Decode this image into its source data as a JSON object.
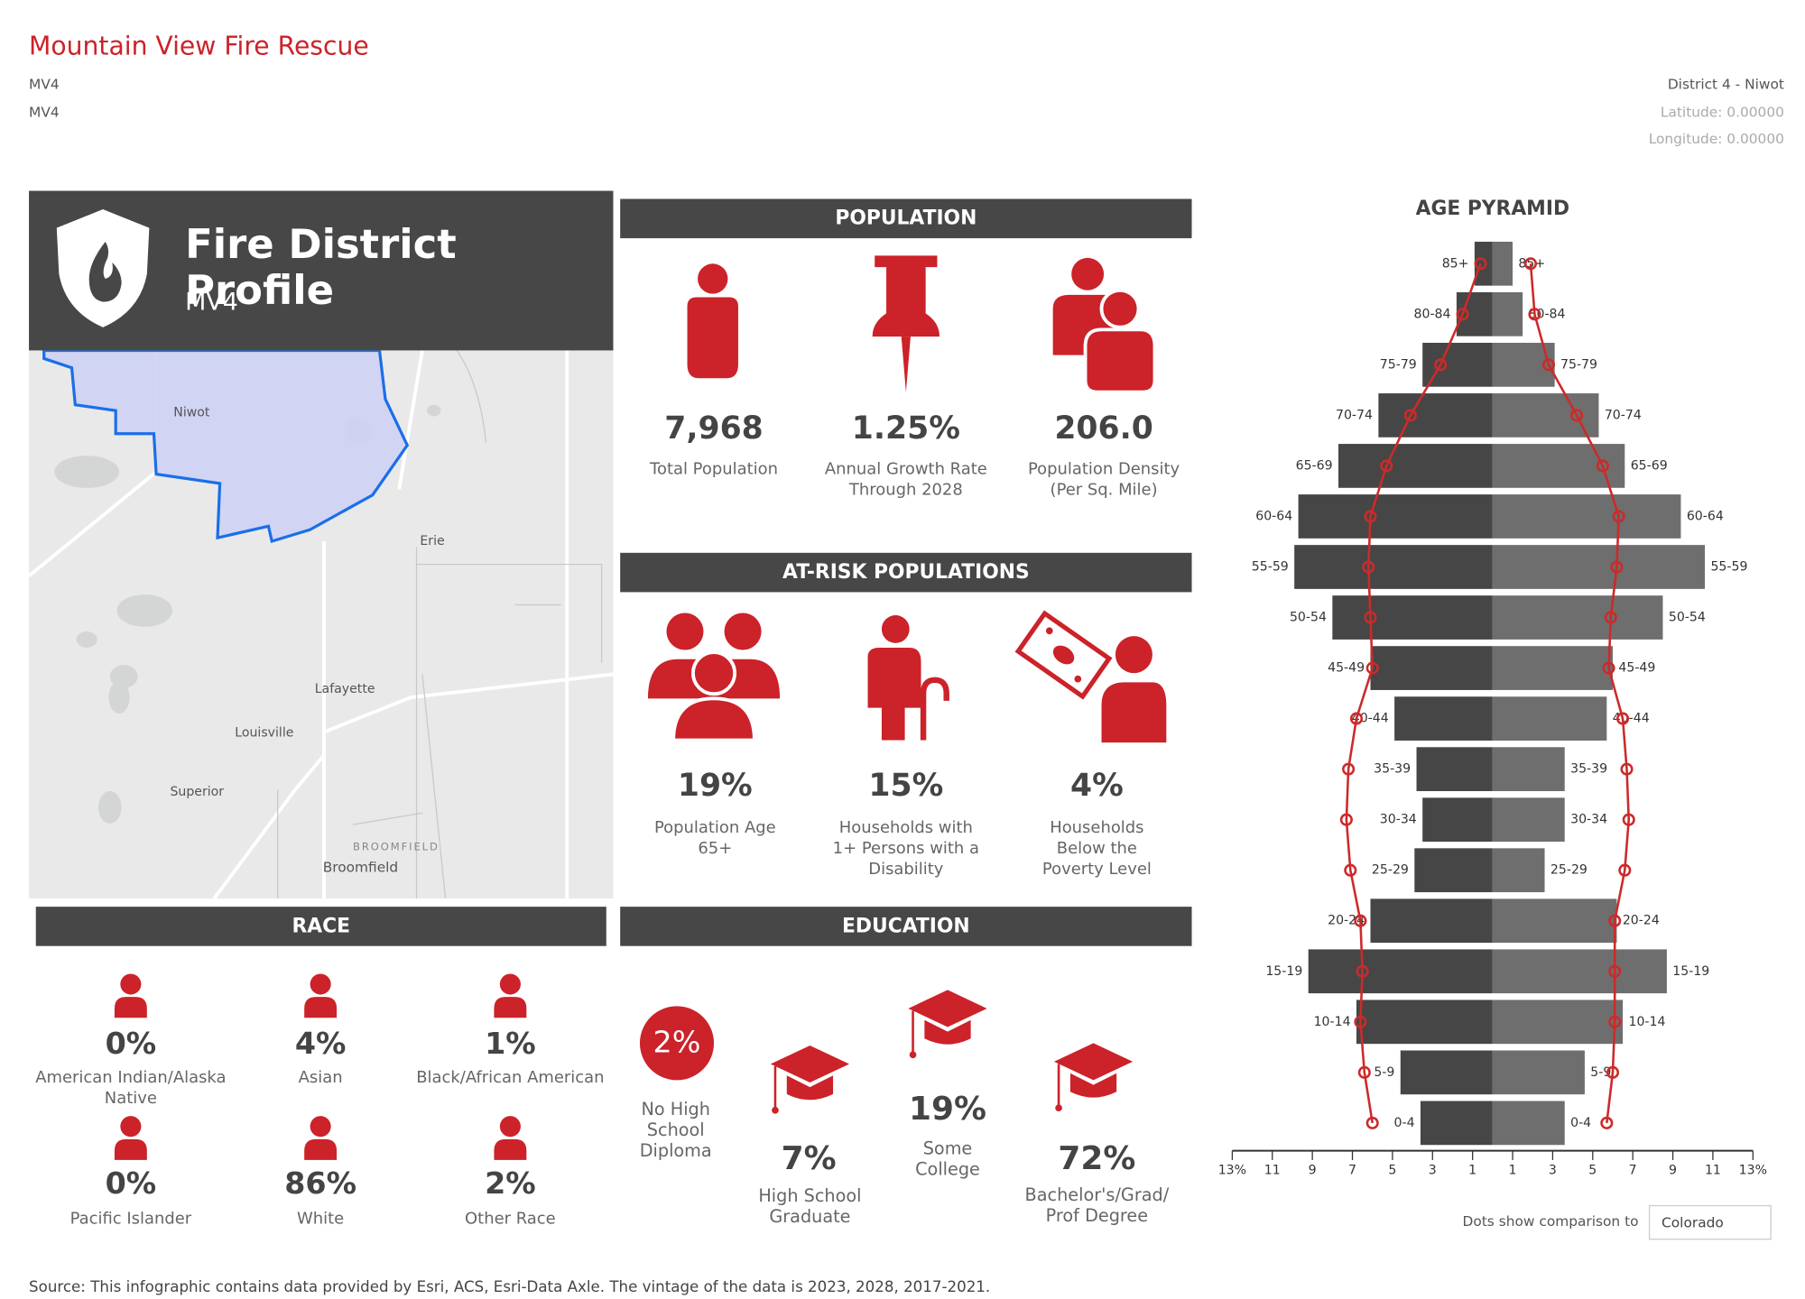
{
  "header": {
    "title": "Mountain View Fire Rescue",
    "code1": "MV4",
    "code2": "MV4",
    "district": "District 4 - Niwot",
    "latitude": "Latitude: 0.00000",
    "longitude": "Longitude: 0.00000"
  },
  "profile": {
    "title": "Fire District Profile",
    "subtitle": "MV4"
  },
  "map": {
    "places": [
      "Niwot",
      "Erie",
      "Lafayette",
      "Louisville",
      "Superior",
      "BROOMFIELD",
      "Broomfield"
    ]
  },
  "population": {
    "heading": "POPULATION",
    "stats": [
      {
        "value": "7,968",
        "label": "Total Population"
      },
      {
        "value": "1.25%",
        "label": "Annual Growth Rate Through 2028"
      },
      {
        "value": "206.0",
        "label": "Population Density (Per Sq. Mile)"
      }
    ]
  },
  "at_risk": {
    "heading": "AT-RISK POPULATIONS",
    "stats": [
      {
        "value": "19%",
        "label": "Population Age 65+"
      },
      {
        "value": "15%",
        "label": "Households with 1+ Persons with a Disability"
      },
      {
        "value": "4%",
        "label": "Households Below the Poverty Level"
      }
    ]
  },
  "race": {
    "heading": "RACE",
    "stats": [
      {
        "value": "0%",
        "label": "American Indian/Alaska Native"
      },
      {
        "value": "4%",
        "label": "Asian"
      },
      {
        "value": "1%",
        "label": "Black/African American"
      },
      {
        "value": "0%",
        "label": "Pacific Islander"
      },
      {
        "value": "86%",
        "label": "White"
      },
      {
        "value": "2%",
        "label": "Other Race"
      }
    ]
  },
  "education": {
    "heading": "EDUCATION",
    "stats": [
      {
        "value": "2%",
        "label": "No High School Diploma"
      },
      {
        "value": "7%",
        "label": "High School Graduate"
      },
      {
        "value": "19%",
        "label": "Some College"
      },
      {
        "value": "72%",
        "label": "Bachelor's/Grad/ Prof Degree"
      }
    ]
  },
  "chart_data": {
    "type": "pyramid",
    "title": "AGE PYRAMID",
    "categories": [
      "85+",
      "80-84",
      "75-79",
      "70-74",
      "65-69",
      "60-64",
      "55-59",
      "50-54",
      "45-49",
      "40-44",
      "35-39",
      "30-34",
      "25-29",
      "20-24",
      "15-19",
      "10-14",
      "5-9",
      "0-4"
    ],
    "series": [
      {
        "side": "left",
        "mark": "bar",
        "color": "#464646",
        "values": [
          0.9,
          1.8,
          3.5,
          5.7,
          7.7,
          9.7,
          9.9,
          8.0,
          6.1,
          4.9,
          3.8,
          3.5,
          3.9,
          6.1,
          9.2,
          6.8,
          4.6,
          3.6
        ]
      },
      {
        "side": "right",
        "mark": "bar",
        "color": "#6e6e6e",
        "values": [
          1.0,
          1.5,
          3.1,
          5.3,
          6.6,
          9.4,
          10.6,
          8.5,
          6.0,
          5.7,
          3.6,
          3.6,
          2.6,
          6.2,
          8.7,
          6.5,
          4.6,
          3.6
        ]
      },
      {
        "side": "left",
        "mark": "dot",
        "color": "#cc2a2a",
        "values": [
          0.6,
          1.5,
          2.6,
          4.1,
          5.3,
          6.1,
          6.2,
          6.1,
          6.0,
          6.8,
          7.2,
          7.3,
          7.1,
          6.6,
          6.5,
          6.6,
          6.4,
          6.0
        ]
      },
      {
        "side": "right",
        "mark": "dot",
        "color": "#cc2a2a",
        "values": [
          1.9,
          2.1,
          2.8,
          4.2,
          5.5,
          6.3,
          6.2,
          5.9,
          5.8,
          6.5,
          6.7,
          6.8,
          6.6,
          6.1,
          6.1,
          6.1,
          6.0,
          5.7
        ]
      }
    ],
    "xlim": [
      0,
      13
    ],
    "xticks": [
      {
        "value": 13,
        "label": "13%"
      },
      11,
      9,
      7,
      5,
      3,
      1
    ]
  },
  "comparison": {
    "label": "Dots show comparison to",
    "value": "Colorado"
  },
  "footer": "Source: This infographic contains data provided by Esri, ACS, Esri-Data Axle. The vintage of the data is 2023, 2028, 2017-2021."
}
